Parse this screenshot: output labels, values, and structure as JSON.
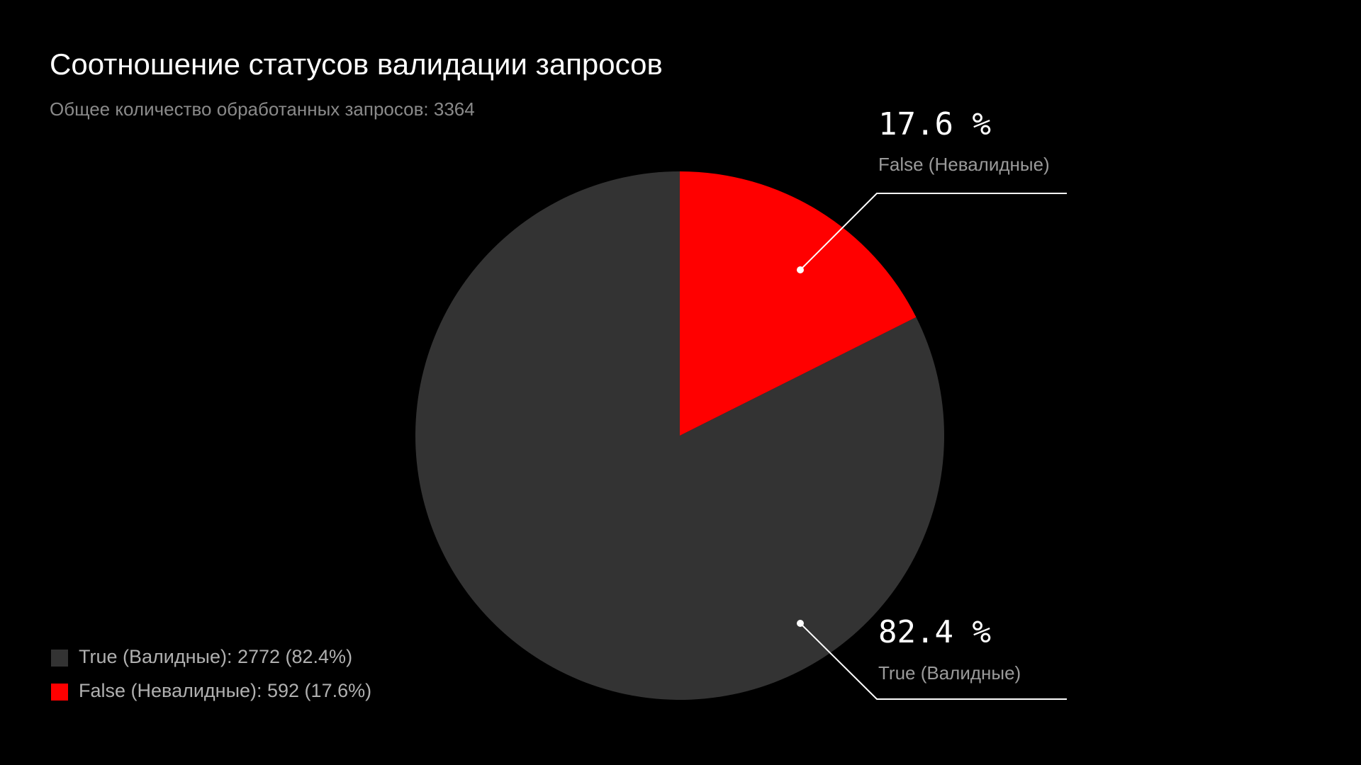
{
  "chart_data": {
    "type": "pie",
    "title": "Соотношение статусов валидации запросов",
    "subtitle": "Общее количество обработанных запросов: 3364",
    "series": [
      {
        "name": "True (Валидные)",
        "color": "#333333"
      },
      {
        "name": "False (Невалидные)",
        "color": "#ff0000"
      }
    ],
    "values": [
      82.4,
      17.6
    ],
    "value_labels": [
      "82.4 %",
      "17.6 %"
    ],
    "legend_labels": [
      "True (Валидные): 2772 (82.4%)",
      "False (Невалидные): 592 (17.6%)"
    ]
  }
}
